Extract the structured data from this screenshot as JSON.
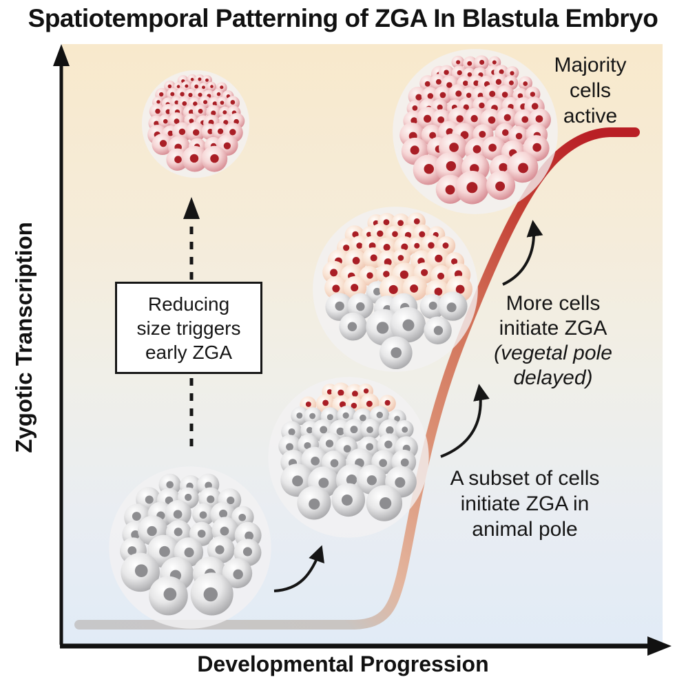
{
  "title": "Spatiotemporal Patterning of ZGA In Blastula Embryo",
  "axes": {
    "y_label": "Zygotic Transcription",
    "x_label": "Developmental Progression"
  },
  "annotations": {
    "majority": [
      "Majority",
      "cells",
      "active"
    ],
    "more_cells": [
      "More cells",
      "initiate ZGA",
      "(vegetal pole",
      "delayed)"
    ],
    "subset": [
      "A subset of cells",
      "initiate ZGA in",
      "animal pole"
    ],
    "reduce_box": [
      "Reducing",
      "size triggers",
      "early ZGA"
    ]
  },
  "curve": {
    "description": "Sigmoidal rise of zygotic transcription along developmental progression; flat inactive baseline then sharp increase to plateau",
    "baseline_color": "#c7c7c9",
    "rise_color": "#d98a6e",
    "peak_color": "#b91f25"
  },
  "background": {
    "top_color": "#f8e9cc",
    "middle_color": "#f0efe8",
    "bottom_color": "#e1ebf6"
  },
  "embryos": [
    {
      "name": "stage-1-embryo",
      "position": "bottom-left",
      "state": "all cells inactive (gray)",
      "cell_color": "#b9b9bb",
      "nucleus_color": "#8d8d90"
    },
    {
      "name": "stage-2-embryo",
      "position": "center",
      "state": "subset of animal-pole cells active",
      "active_cell_color": "#f6ddcb",
      "nucleus_color": "#a91e25"
    },
    {
      "name": "stage-3-embryo",
      "position": "upper-center",
      "state": "animal half active, vegetal pole delayed",
      "active_cell_color": "#f3d2bd",
      "nucleus_color": "#a91e25"
    },
    {
      "name": "stage-4-embryo",
      "position": "top-right",
      "state": "majority of cells active",
      "active_cell_color": "#e8aeb3",
      "nucleus_color": "#a91e25"
    },
    {
      "name": "reduced-size-embryo",
      "position": "top-left",
      "state": "all cells active (early ZGA from reduced size)",
      "active_cell_color": "#e8aeb3",
      "nucleus_color": "#a91e25"
    }
  ]
}
